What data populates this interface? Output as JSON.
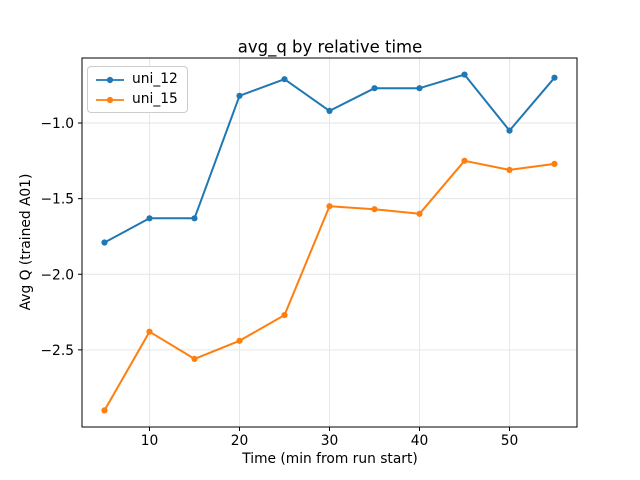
{
  "chart_data": {
    "type": "line",
    "title": "avg_q by relative time",
    "xlabel": "Time (min from run start)",
    "ylabel": "Avg Q (trained A01)",
    "x": [
      5,
      10,
      15,
      20,
      25,
      30,
      35,
      40,
      45,
      50,
      55
    ],
    "series": [
      {
        "name": "uni_12",
        "color": "#1f77b4",
        "values": [
          -1.79,
          -1.63,
          -1.63,
          -0.82,
          -0.71,
          -0.92,
          -0.77,
          -0.77,
          -0.68,
          -1.05,
          -0.7
        ]
      },
      {
        "name": "uni_15",
        "color": "#ff7f0e",
        "values": [
          -2.9,
          -2.38,
          -2.56,
          -2.44,
          -2.27,
          -1.55,
          -1.57,
          -1.6,
          -1.25,
          -1.31,
          -1.27
        ]
      }
    ],
    "xticks": [
      10,
      20,
      30,
      40,
      50
    ],
    "xtick_labels": [
      "10",
      "20",
      "30",
      "40",
      "50"
    ],
    "yticks": [
      -1.0,
      -1.5,
      -2.0,
      -2.5
    ],
    "ytick_labels": [
      "−1.0",
      "−1.5",
      "−2.0",
      "−2.5"
    ],
    "xlim": [
      2.5,
      57.5
    ],
    "ylim": [
      -3.01,
      -0.57
    ],
    "grid": true,
    "legend_position": "upper left"
  },
  "figure": {
    "background": "#ffffff",
    "grid_color": "#e6e6e6",
    "spine_color": "#000000",
    "tick_color": "#000000",
    "legend_border_color": "#cccccc"
  }
}
